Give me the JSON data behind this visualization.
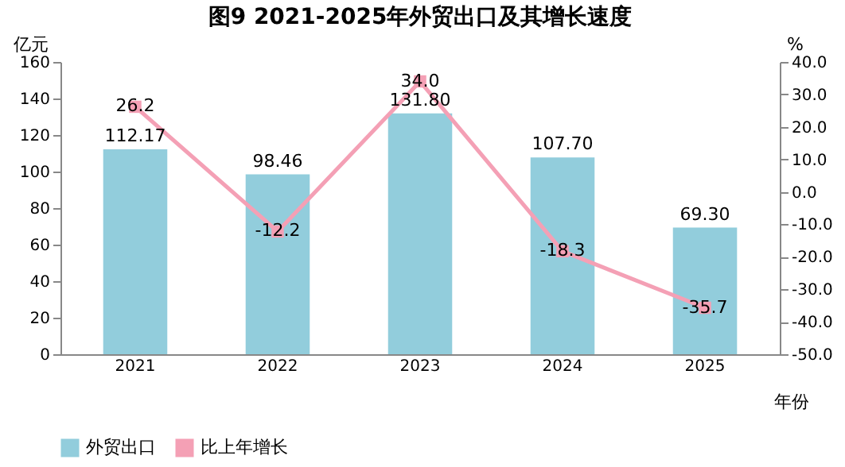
{
  "chart_data": {
    "type": "bar",
    "title": "图9  2021-2025年外贸出口及其增长速度",
    "ylabel": "亿元",
    "y2label": "%",
    "xlabel": "年份",
    "categories": [
      "2021",
      "2022",
      "2023",
      "2024",
      "2025"
    ],
    "series": [
      {
        "name": "外贸出口",
        "color": "#92cddc",
        "values": [
          112.17,
          98.46,
          131.8,
          107.7,
          69.3
        ],
        "value_labels": [
          "112.17",
          "98.46",
          "131.80",
          "107.70",
          "69.30"
        ]
      },
      {
        "name": "比上年增长",
        "type": "line",
        "axis": "y2",
        "color": "#f4a0b5",
        "marker": "square",
        "values": [
          26.2,
          -12.2,
          34.0,
          -18.3,
          -35.7
        ],
        "value_labels": [
          "26.2",
          "-12.2",
          "34.0",
          "-18.3",
          "-35.7"
        ]
      }
    ],
    "ylim": [
      0,
      160
    ],
    "yticks": [
      0,
      20,
      40,
      60,
      80,
      100,
      120,
      140,
      160
    ],
    "y2lim": [
      -50,
      40
    ],
    "y2ticks": [
      {
        "value": -50,
        "label": "-50.0"
      },
      {
        "value": -40,
        "label": "-40.0"
      },
      {
        "value": -30,
        "label": "-30.0"
      },
      {
        "value": -20,
        "label": "-20.0"
      },
      {
        "value": -10,
        "label": "-10.0"
      },
      {
        "value": 0,
        "label": "0.0"
      },
      {
        "value": 10,
        "label": "10.0"
      },
      {
        "value": 20,
        "label": "20.0"
      },
      {
        "value": 30,
        "label": "30.0"
      },
      {
        "value": 40,
        "label": "40.0"
      }
    ],
    "grid": false,
    "legend": "bottom"
  }
}
